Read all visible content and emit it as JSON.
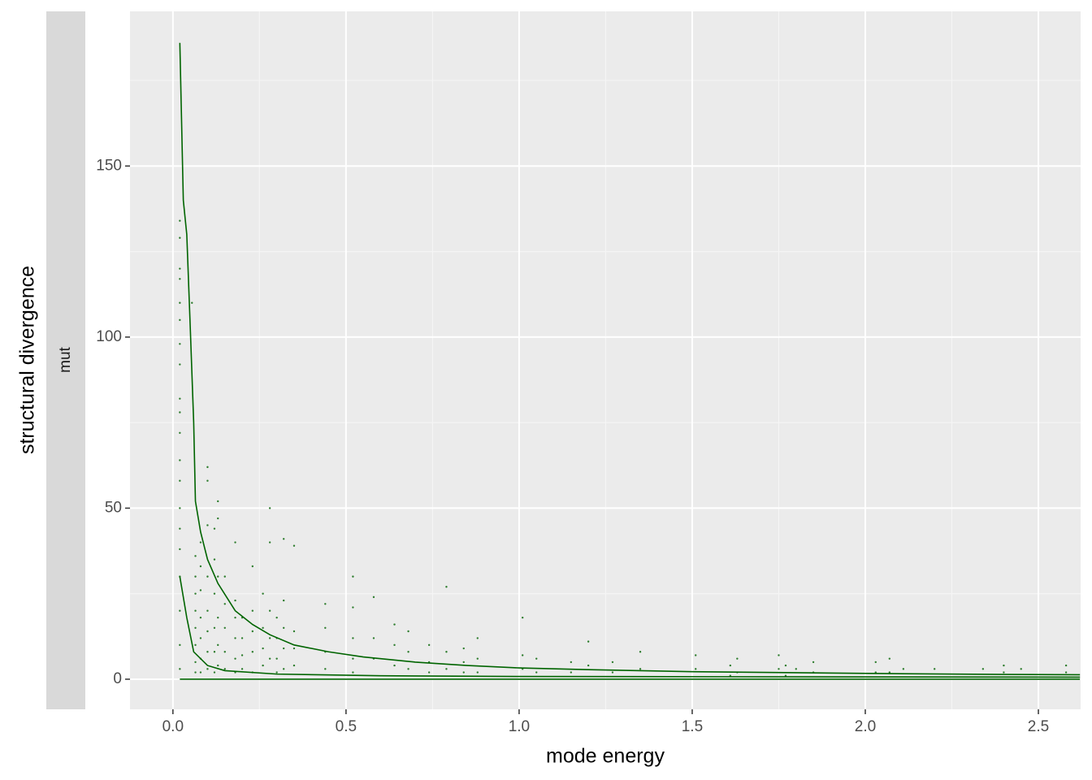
{
  "chart_data": {
    "type": "scatter",
    "x_label": "mode energy",
    "y_label": "structural divergence",
    "strip": "mut",
    "xlim": [
      -0.124,
      2.622
    ],
    "ylim": [
      -8.8,
      195.2
    ],
    "xticks": [
      {
        "value": 0,
        "label": "0.0"
      },
      0.5,
      {
        "value": 1,
        "label": "1.0"
      },
      1.5,
      {
        "value": 2,
        "label": "2.0"
      },
      2.5
    ],
    "yticks": [
      0,
      50,
      100,
      150
    ],
    "grid": true,
    "points": {
      "color": "#2e7d2e",
      "x": [
        0.02,
        0.02,
        0.02,
        0.02,
        0.02,
        0.02,
        0.02,
        0.02,
        0.02,
        0.02,
        0.02,
        0.02,
        0.02,
        0.02,
        0.02,
        0.02,
        0.02,
        0.02,
        0.02,
        0.02,
        0.055,
        0.065,
        0.065,
        0.065,
        0.065,
        0.065,
        0.065,
        0.065,
        0.065,
        0.08,
        0.08,
        0.08,
        0.08,
        0.08,
        0.08,
        0.08,
        0.1,
        0.1,
        0.1,
        0.1,
        0.1,
        0.1,
        0.1,
        0.1,
        0.12,
        0.12,
        0.12,
        0.12,
        0.12,
        0.12,
        0.13,
        0.13,
        0.13,
        0.13,
        0.13,
        0.13,
        0.15,
        0.15,
        0.15,
        0.15,
        0.15,
        0.18,
        0.18,
        0.18,
        0.18,
        0.18,
        0.18,
        0.2,
        0.2,
        0.2,
        0.2,
        0.23,
        0.23,
        0.23,
        0.23,
        0.23,
        0.26,
        0.26,
        0.26,
        0.26,
        0.28,
        0.28,
        0.28,
        0.28,
        0.28,
        0.3,
        0.3,
        0.3,
        0.3,
        0.32,
        0.32,
        0.32,
        0.32,
        0.32,
        0.35,
        0.35,
        0.35,
        0.35,
        0.44,
        0.44,
        0.44,
        0.44,
        0.52,
        0.52,
        0.52,
        0.52,
        0.52,
        0.58,
        0.58,
        0.58,
        0.64,
        0.64,
        0.64,
        0.68,
        0.68,
        0.68,
        0.74,
        0.74,
        0.74,
        0.79,
        0.79,
        0.79,
        0.84,
        0.84,
        0.84,
        0.88,
        0.88,
        0.88,
        1.01,
        1.01,
        1.01,
        1.05,
        1.05,
        1.15,
        1.15,
        1.2,
        1.2,
        1.27,
        1.27,
        1.35,
        1.35,
        1.51,
        1.51,
        1.61,
        1.61,
        1.63,
        1.63,
        1.75,
        1.75,
        1.77,
        1.77,
        1.8,
        1.85,
        1.85,
        2.03,
        2.03,
        2.07,
        2.07,
        2.11,
        2.2,
        2.34,
        2.4,
        2.4,
        2.45,
        2.58,
        2.58
      ],
      "values": [
        134,
        129,
        120,
        117,
        110,
        105,
        98,
        92,
        82,
        78,
        72,
        64,
        58,
        50,
        44,
        38,
        30,
        20,
        10,
        3,
        110,
        36,
        30,
        25,
        20,
        15,
        10,
        5,
        2,
        40,
        33,
        26,
        18,
        12,
        6,
        2,
        62,
        58,
        45,
        30,
        20,
        14,
        8,
        3,
        44,
        35,
        25,
        15,
        8,
        2,
        52,
        47,
        30,
        18,
        10,
        4,
        30,
        22,
        15,
        8,
        3,
        40,
        23,
        18,
        12,
        6,
        2,
        18,
        12,
        7,
        3,
        33,
        20,
        14,
        8,
        2,
        25,
        15,
        9,
        4,
        50,
        40,
        20,
        12,
        6,
        18,
        12,
        6,
        2,
        41,
        23,
        15,
        9,
        3,
        39,
        14,
        9,
        4,
        22,
        15,
        8,
        3,
        30,
        21,
        12,
        6,
        2,
        24,
        12,
        6,
        16,
        10,
        4,
        14,
        8,
        3,
        10,
        5,
        2,
        27,
        8,
        3,
        9,
        5,
        2,
        12,
        6,
        2,
        18,
        7,
        3,
        6,
        2,
        5,
        2,
        11,
        4,
        5,
        2,
        8,
        3,
        7,
        3,
        4,
        1,
        6,
        2,
        7,
        3,
        4,
        1,
        3,
        5,
        2,
        5,
        2,
        6,
        2,
        3,
        3,
        3,
        4,
        2,
        3,
        4,
        2
      ]
    },
    "lines": [
      {
        "color": "#006400",
        "x": [
          0.02,
          0.03,
          0.04,
          0.05,
          0.06,
          0.065,
          0.08,
          0.1,
          0.13,
          0.18,
          0.23,
          0.28,
          0.35,
          0.45,
          0.55,
          0.7,
          0.85,
          1.0,
          1.2,
          1.5,
          1.8,
          2.1,
          2.4,
          2.62
        ],
        "values": [
          186,
          140,
          130,
          103,
          75,
          52,
          43,
          35,
          28,
          20,
          16,
          13,
          10,
          8,
          6.5,
          5,
          4,
          3.3,
          2.8,
          2.2,
          1.9,
          1.6,
          1.4,
          1.3
        ]
      },
      {
        "color": "#006400",
        "x": [
          0.02,
          0.04,
          0.06,
          0.1,
          0.15,
          0.3,
          0.6,
          1.0,
          2.62
        ],
        "values": [
          30,
          18,
          8,
          4,
          2.5,
          1.5,
          1,
          0.8,
          0.6
        ]
      },
      {
        "color": "#006400",
        "x": [
          0.02,
          2.62
        ],
        "values": [
          0,
          0
        ]
      }
    ]
  }
}
